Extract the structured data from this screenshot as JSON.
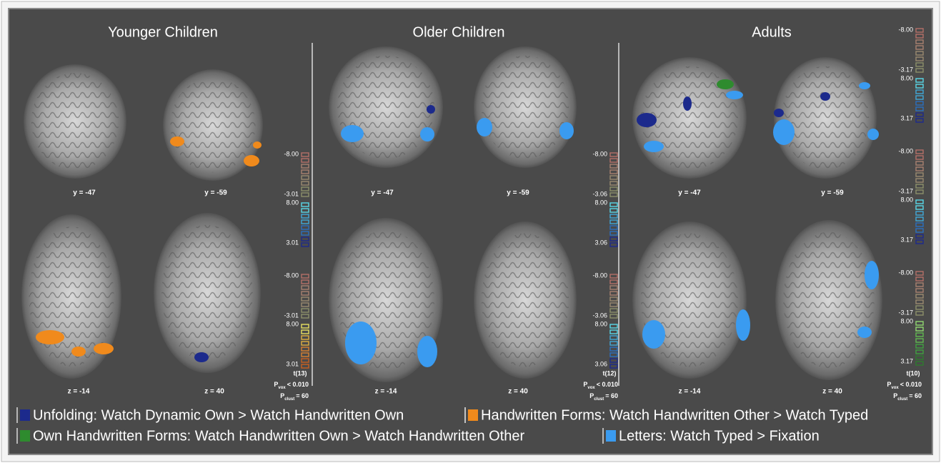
{
  "panels": [
    {
      "title": "Younger Children",
      "slices": [
        "y = -47",
        "y = -59",
        "z = -14",
        "z = 40"
      ],
      "colorbars": [
        {
          "max_neg": "-8.00",
          "min_neg": "-3.01",
          "max_pos": "8.00",
          "min_pos": "3.01"
        },
        {
          "max_neg": "-8.00",
          "min_neg": "-3.01",
          "max_pos": "8.00",
          "min_pos": "3.01"
        }
      ],
      "stat": "t(13)",
      "p_vox": {
        "symbol": "P",
        "subscript": "vox",
        "text": "< 0.010"
      },
      "p_clust": {
        "symbol": "P",
        "subscript": "clust",
        "text": "= 60"
      }
    },
    {
      "title": "Older Children",
      "slices": [
        "y = -47",
        "y = -59",
        "z = -14",
        "z = 40"
      ],
      "colorbars": [
        {
          "max_neg": "-8.00",
          "min_neg": "-3.06",
          "max_pos": "8.00",
          "min_pos": "3.06"
        },
        {
          "max_neg": "-8.00",
          "min_neg": "-3.06",
          "max_pos": "8.00",
          "min_pos": "3.06"
        }
      ],
      "stat": "t(12)",
      "p_vox": {
        "symbol": "P",
        "subscript": "vox",
        "text": "< 0.010"
      },
      "p_clust": {
        "symbol": "P",
        "subscript": "clust",
        "text": "= 60"
      }
    },
    {
      "title": "Adults",
      "slices": [
        "y = -47",
        "y = -59",
        "z = -14",
        "z = 40"
      ],
      "colorbars": [
        {
          "max_neg": "-8.00",
          "min_neg": "-3.17",
          "max_pos": "8.00",
          "min_pos": "3.17"
        },
        {
          "max_neg": "-8.00",
          "min_neg": "-3.17",
          "max_pos": "8.00",
          "min_pos": "3.17"
        },
        {
          "max_neg": "-8.00",
          "min_neg": "-3.17",
          "max_pos": "8.00",
          "min_pos": "3.17"
        }
      ],
      "stat": "t(10)",
      "p_vox": {
        "symbol": "P",
        "subscript": "vox",
        "text": "< 0.010"
      },
      "p_clust": {
        "symbol": "P",
        "subscript": "clust",
        "text": "= 60"
      }
    }
  ],
  "legend": [
    {
      "color": "#1c2a8c",
      "text": "Unfolding: Watch Dynamic Own > Watch Handwritten Own"
    },
    {
      "color": "#f08a1c",
      "text": "Handwritten Forms: Watch Handwritten Other > Watch Typed"
    },
    {
      "color": "#2e8b2e",
      "text": "Own Handwritten Forms: Watch Handwritten Own > Watch Handwritten Other"
    },
    {
      "color": "#3a9bf0",
      "text": "Letters: Watch Typed > Fixation"
    }
  ]
}
